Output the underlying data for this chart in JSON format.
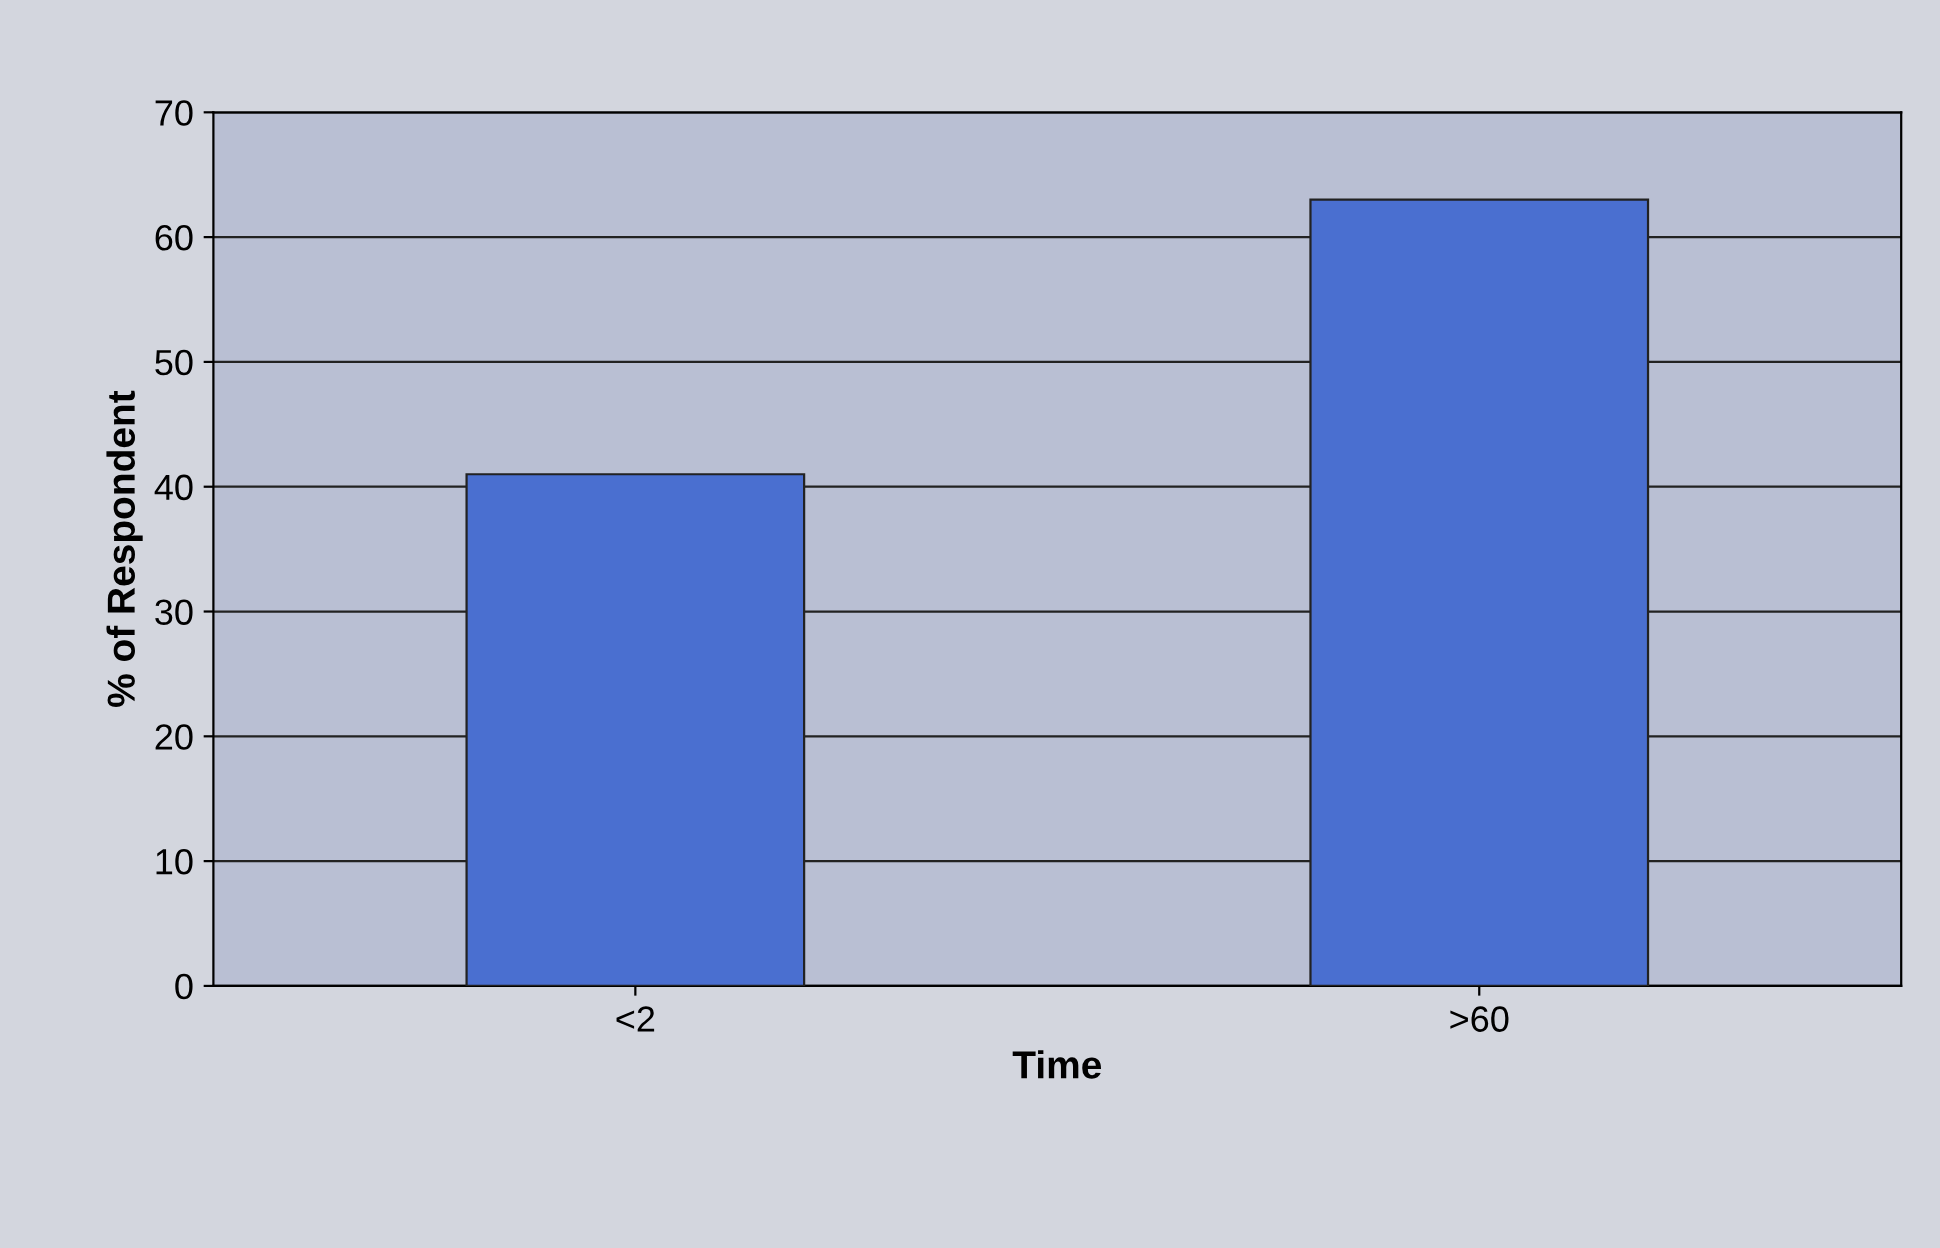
{
  "chart_data": {
    "type": "bar",
    "xlabel": "Time",
    "ylabel": "% of Respondent",
    "categories": [
      "<2",
      ">60"
    ],
    "series": [
      {
        "color": "#4a6fd0",
        "values": [
          41,
          63
        ]
      }
    ],
    "ylim": [
      0,
      70
    ],
    "yticks": [
      0,
      10,
      20,
      30,
      40,
      50,
      60,
      70
    ],
    "grid": "y",
    "legend": false
  }
}
